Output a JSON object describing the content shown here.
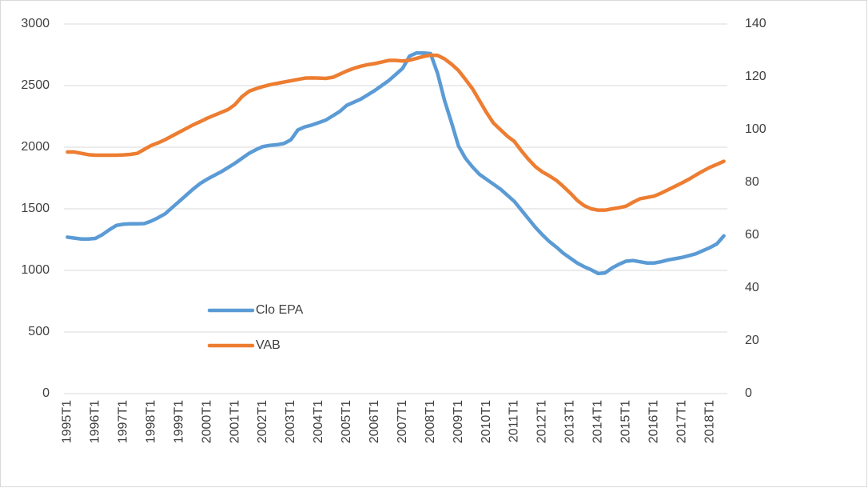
{
  "chart_data": {
    "type": "line",
    "categories": [
      "1995T1",
      null,
      null,
      null,
      "1996T1",
      null,
      null,
      null,
      "1997T1",
      null,
      null,
      null,
      "1998T1",
      null,
      null,
      null,
      "1999T1",
      null,
      null,
      null,
      "2000T1",
      null,
      null,
      null,
      "2001T1",
      null,
      null,
      null,
      "2002T1",
      null,
      null,
      null,
      "2003T1",
      null,
      null,
      null,
      "2004T1",
      null,
      null,
      null,
      "2005T1",
      null,
      null,
      null,
      "2006T1",
      null,
      null,
      null,
      "2007T1",
      null,
      null,
      null,
      "2008T1",
      null,
      null,
      null,
      "2009T1",
      null,
      null,
      null,
      "2010T1",
      null,
      null,
      null,
      "2011T1",
      null,
      null,
      null,
      "2012T1",
      null,
      null,
      null,
      "2013T1",
      null,
      null,
      null,
      "2014T1",
      null,
      null,
      null,
      "2015T1",
      null,
      null,
      null,
      "2016T1",
      null,
      null,
      null,
      "2017T1",
      null,
      null,
      null,
      "2018T1",
      null,
      null
    ],
    "series": [
      {
        "name": "Clo EPA",
        "color": "#5b9bd5",
        "values": [
          1270,
          1262,
          1255,
          1255,
          1260,
          1290,
          1330,
          1365,
          1375,
          1378,
          1378,
          1380,
          1400,
          1428,
          1460,
          1510,
          1560,
          1610,
          1660,
          1705,
          1740,
          1770,
          1800,
          1835,
          1870,
          1910,
          1950,
          1980,
          2005,
          2015,
          2020,
          2030,
          2060,
          2140,
          2165,
          2180,
          2200,
          2220,
          2255,
          2290,
          2340,
          2365,
          2390,
          2425,
          2460,
          2500,
          2540,
          2590,
          2640,
          2740,
          2765,
          2765,
          2760,
          2600,
          2380,
          2200,
          2010,
          1910,
          1840,
          1780,
          1740,
          1700,
          1660,
          1610,
          1560,
          1490,
          1420,
          1350,
          1290,
          1235,
          1190,
          1140,
          1100,
          1060,
          1030,
          1005,
          975,
          980,
          1020,
          1050,
          1075,
          1080,
          1070,
          1060,
          1060,
          1070,
          1085,
          1095,
          1105,
          1120,
          1135,
          1160,
          1185,
          1215,
          1280
        ]
      },
      {
        "name": "VAB",
        "color": "#ed7d31",
        "axis": "y2",
        "values": [
          91.5,
          91.5,
          91,
          90.5,
          90.3,
          90.3,
          90.3,
          90.3,
          90.4,
          90.6,
          91,
          92.5,
          94,
          95,
          96.2,
          97.6,
          99,
          100.4,
          101.8,
          103,
          104.3,
          105.4,
          106.5,
          107.6,
          109.5,
          112.5,
          114.5,
          115.5,
          116.3,
          117,
          117.5,
          118,
          118.5,
          119,
          119.5,
          119.6,
          119.5,
          119.4,
          119.8,
          121,
          122.2,
          123.2,
          124,
          124.6,
          125,
          125.6,
          126.2,
          126.2,
          126,
          126.3,
          127,
          127.7,
          128.2,
          128.1,
          126.8,
          124.8,
          122.4,
          119,
          115.5,
          111,
          106.5,
          102.5,
          100,
          97.5,
          95.5,
          92,
          88.8,
          86,
          84,
          82.5,
          80.8,
          78.5,
          76,
          73.2,
          71.2,
          70,
          69.5,
          69.5,
          70,
          70.4,
          71,
          72.5,
          73.8,
          74.3,
          74.8,
          75.9,
          77.2,
          78.5,
          79.8,
          81.2,
          82.8,
          84.3,
          85.7,
          86.8,
          88
        ]
      }
    ],
    "ylim": [
      0,
      3000
    ],
    "yticks": [
      0,
      500,
      1000,
      1500,
      2000,
      2500,
      3000
    ],
    "y2lim": [
      0,
      140
    ],
    "y2ticks": [
      0,
      20,
      40,
      60,
      80,
      100,
      120,
      140
    ],
    "grid": true
  }
}
